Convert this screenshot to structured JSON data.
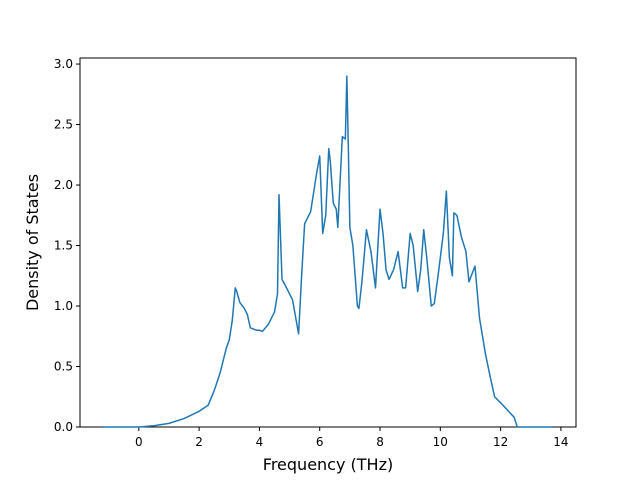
{
  "chart_data": {
    "type": "line",
    "title": "",
    "xlabel": "Frequency (THz)",
    "ylabel": "Density of States",
    "xlim": [
      -1.95,
      14.5
    ],
    "ylim": [
      0.0,
      3.05
    ],
    "x_ticks": [
      0,
      2,
      4,
      6,
      8,
      10,
      12,
      14
    ],
    "x_tick_labels": [
      "0",
      "2",
      "4",
      "6",
      "8",
      "10",
      "12",
      "14"
    ],
    "y_ticks": [
      0.0,
      0.5,
      1.0,
      1.5,
      2.0,
      2.5,
      3.0
    ],
    "y_tick_labels": [
      "0.0",
      "0.5",
      "1.0",
      "1.5",
      "2.0",
      "2.5",
      "3.0"
    ],
    "grid": false,
    "line_color": "#1f77b4",
    "series": [
      {
        "x": [
          -1.2,
          0.0,
          0.5,
          1.0,
          1.5,
          2.0,
          2.3,
          2.5,
          2.7,
          2.9,
          3.0,
          3.1,
          3.2,
          3.25,
          3.35,
          3.5,
          3.6,
          3.7,
          3.9,
          4.0,
          4.1,
          4.3,
          4.5,
          4.6,
          4.65,
          4.75,
          4.9,
          5.1,
          5.3,
          5.4,
          5.5,
          5.7,
          5.9,
          6.0,
          6.1,
          6.2,
          6.3,
          6.35,
          6.45,
          6.55,
          6.6,
          6.75,
          6.85,
          6.9,
          6.95,
          7.0,
          7.1,
          7.25,
          7.3,
          7.4,
          7.55,
          7.7,
          7.85,
          8.0,
          8.1,
          8.2,
          8.3,
          8.45,
          8.6,
          8.75,
          8.85,
          9.0,
          9.1,
          9.25,
          9.35,
          9.45,
          9.55,
          9.7,
          9.8,
          9.95,
          10.1,
          10.2,
          10.3,
          10.4,
          10.45,
          10.55,
          10.7,
          10.85,
          10.95,
          11.15,
          11.3,
          11.5,
          11.65,
          11.8,
          12.0,
          12.3,
          12.45,
          12.55,
          12.7,
          13.7
        ],
        "y": [
          0.0,
          0.0,
          0.01,
          0.03,
          0.07,
          0.13,
          0.18,
          0.3,
          0.45,
          0.65,
          0.72,
          0.88,
          1.15,
          1.12,
          1.03,
          0.98,
          0.93,
          0.82,
          0.8,
          0.8,
          0.79,
          0.85,
          0.95,
          1.1,
          1.92,
          1.22,
          1.15,
          1.05,
          0.77,
          1.25,
          1.68,
          1.78,
          2.1,
          2.24,
          1.6,
          1.75,
          2.3,
          2.2,
          1.85,
          1.8,
          1.65,
          2.4,
          2.38,
          2.9,
          2.3,
          1.65,
          1.5,
          1.0,
          0.98,
          1.2,
          1.63,
          1.45,
          1.15,
          1.8,
          1.6,
          1.3,
          1.22,
          1.3,
          1.45,
          1.15,
          1.15,
          1.6,
          1.5,
          1.12,
          1.3,
          1.63,
          1.4,
          1.0,
          1.02,
          1.3,
          1.6,
          1.95,
          1.4,
          1.25,
          1.77,
          1.75,
          1.57,
          1.45,
          1.2,
          1.33,
          0.9,
          0.6,
          0.42,
          0.25,
          0.2,
          0.12,
          0.08,
          0.0,
          0.0,
          0.0
        ]
      }
    ]
  }
}
